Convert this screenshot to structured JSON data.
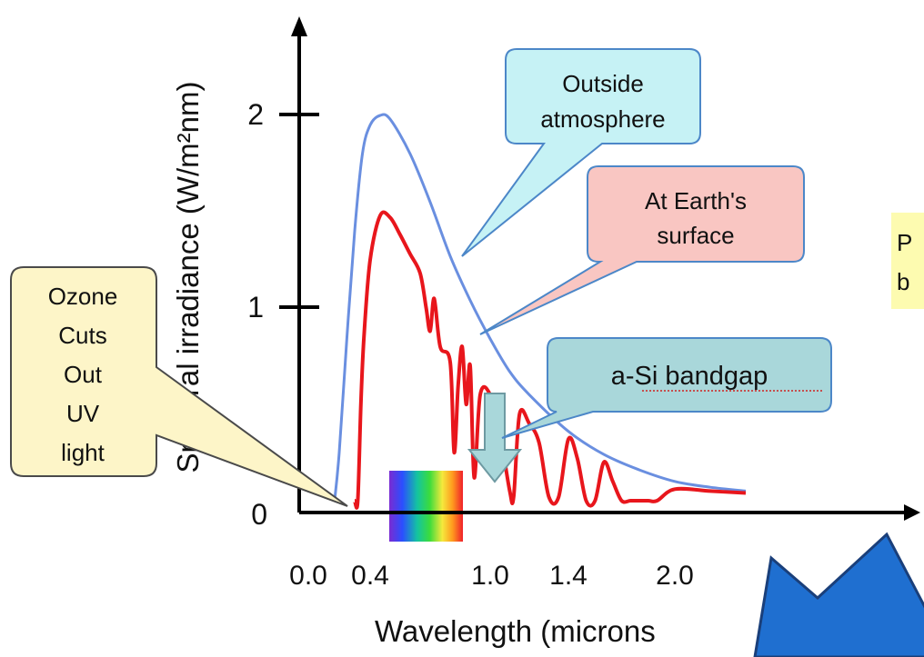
{
  "chart_data": {
    "type": "line",
    "title": "",
    "xlabel": "Wavelength (microns",
    "ylabel": "Spectral irradiance (W/m²nm)",
    "xlim": [
      0.0,
      2.4
    ],
    "ylim": [
      0,
      2.3
    ],
    "x_ticks": [
      {
        "value": 0.0,
        "label": "0.0"
      },
      {
        "value": 0.4,
        "label": "0.4"
      },
      {
        "value": 1.0,
        "label": "1.0"
      },
      {
        "value": 1.4,
        "label": "1.4"
      },
      {
        "value": 2.0,
        "label": "2.0"
      }
    ],
    "y_ticks": [
      {
        "value": 0,
        "label": "0"
      },
      {
        "value": 1,
        "label": "1"
      },
      {
        "value": 2,
        "label": "2"
      }
    ],
    "series": [
      {
        "color": "#6a8fe0",
        "x": [
          0.17,
          0.2,
          0.25,
          0.3,
          0.35,
          0.4,
          0.45,
          0.5,
          0.6,
          0.7,
          0.8,
          0.9,
          1.0,
          1.1,
          1.2,
          1.4,
          1.6,
          1.8,
          2.0,
          2.2,
          2.4
        ],
        "y": [
          0.0,
          0.25,
          0.85,
          1.4,
          1.8,
          1.95,
          2.0,
          1.98,
          1.8,
          1.55,
          1.27,
          1.04,
          0.84,
          0.67,
          0.55,
          0.36,
          0.24,
          0.16,
          0.1,
          0.07,
          0.05
        ]
      },
      {
        "color": "#e8161c",
        "x": [
          0.3,
          0.32,
          0.34,
          0.36,
          0.4,
          0.45,
          0.5,
          0.55,
          0.6,
          0.65,
          0.68,
          0.7,
          0.72,
          0.75,
          0.8,
          0.82,
          0.84,
          0.86,
          0.88,
          0.9,
          0.92,
          0.95,
          1.0,
          1.05,
          1.1,
          1.12,
          1.15,
          1.2,
          1.25,
          1.3,
          1.35,
          1.4,
          1.45,
          1.5,
          1.55,
          1.6,
          1.65,
          1.7,
          1.75,
          1.8,
          1.85,
          1.9,
          2.0,
          2.2,
          2.4
        ],
        "y": [
          0.0,
          0.0,
          0.5,
          0.85,
          1.25,
          1.48,
          1.47,
          1.38,
          1.28,
          1.18,
          1.0,
          0.88,
          1.05,
          0.8,
          0.72,
          0.25,
          0.6,
          0.8,
          0.5,
          0.7,
          0.12,
          0.55,
          0.55,
          0.35,
          0.05,
          0.02,
          0.45,
          0.4,
          0.3,
          0.02,
          0.02,
          0.32,
          0.22,
          0.0,
          0.0,
          0.2,
          0.1,
          0.0,
          0.0,
          0.0,
          0.0,
          0.0,
          0.06,
          0.05,
          0.04
        ]
      }
    ],
    "annotations": [
      {
        "text_lines": [
          "Outside",
          "atmosphere"
        ],
        "fill": "#c6f2f5",
        "target": "blue"
      },
      {
        "text_lines": [
          "At Earth's",
          "surface"
        ],
        "fill": "#f9c6c2",
        "target": "red"
      },
      {
        "text_lines": [
          "a-Si bandgap"
        ],
        "fill": "#a9d7da"
      },
      {
        "text_lines": [
          "Ozone",
          "Cuts",
          "Out",
          "UV",
          "light"
        ],
        "fill": "#fdf5c8"
      }
    ],
    "clipped_note": [
      "P",
      "b"
    ]
  }
}
